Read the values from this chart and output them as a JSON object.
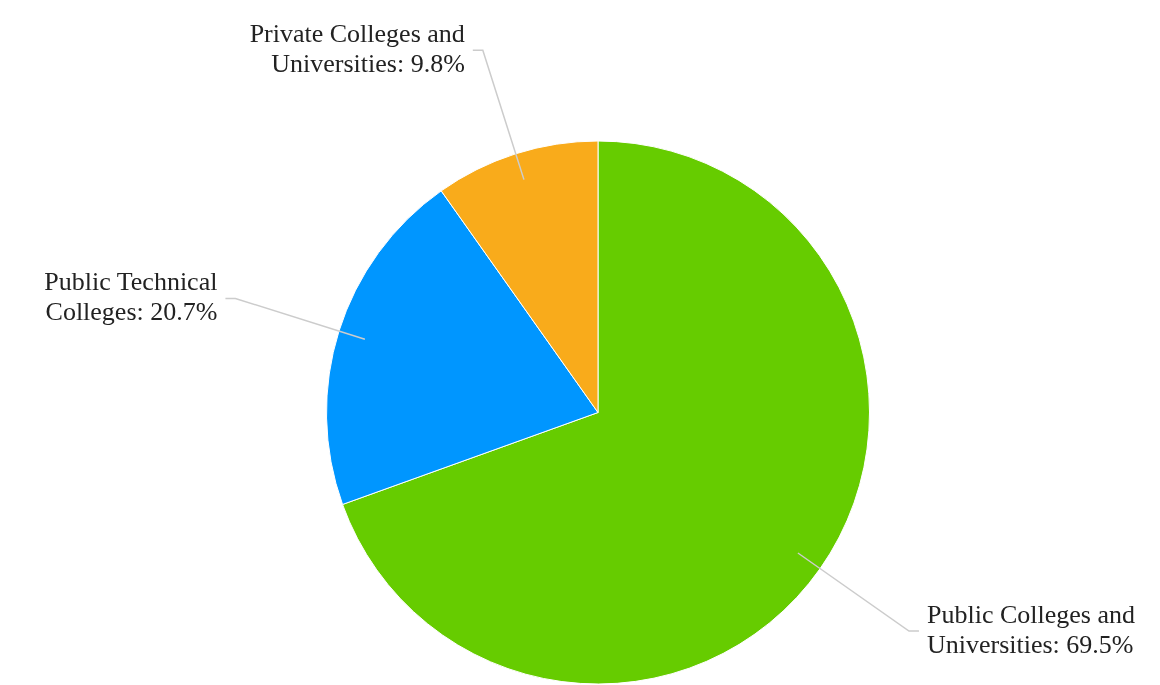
{
  "chart_data": {
    "type": "pie",
    "categories": [
      "Public Colleges and Universities",
      "Public Technical Colleges",
      "Private Colleges and Universities"
    ],
    "values": [
      69.5,
      20.7,
      9.8
    ],
    "value_labels": [
      "69.5%",
      "20.7%",
      "9.8%"
    ],
    "colors": [
      "#66cc00",
      "#0096ff",
      "#f9ab1b"
    ],
    "data_labels": true,
    "legend": false
  }
}
